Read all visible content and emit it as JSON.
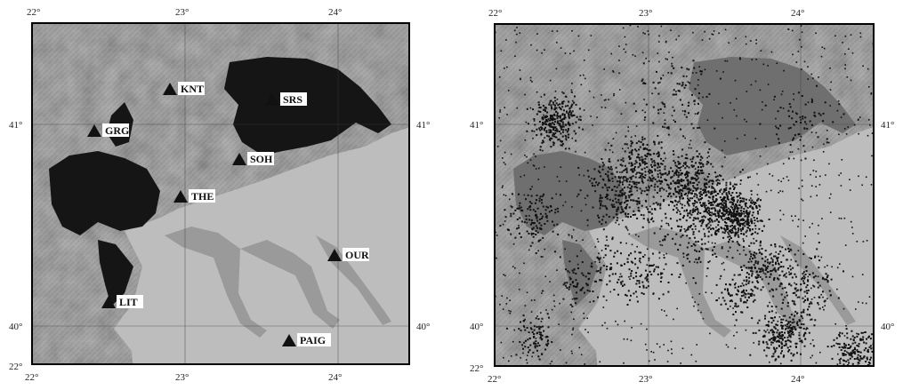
{
  "left_map": {
    "top_ticks": [
      "22°",
      "23°",
      "24°"
    ],
    "bottom_ticks": [
      "22°",
      "23°",
      "24°"
    ],
    "left_ticks": [
      "41°",
      "40°",
      "22°"
    ],
    "right_ticks": [
      "41°",
      "40°"
    ],
    "stations": [
      "KNT",
      "SRS",
      "GRG",
      "SOH",
      "THE",
      "OUR",
      "LIT",
      "PAIG"
    ]
  },
  "right_map": {
    "top_ticks": [
      "22°",
      "23°",
      "24°"
    ],
    "bottom_ticks": [
      "22°",
      "23°",
      "24°"
    ],
    "left_ticks": [
      "41°",
      "40°",
      "22°"
    ],
    "right_ticks": [
      "41°",
      "40°"
    ]
  },
  "colors": {
    "land": "#9a9a9a",
    "sea": "#bdbdbd",
    "dark_water": "#151515",
    "gray_water": "#6f6f6f",
    "events": "#111111",
    "station_marker": "#111111"
  }
}
